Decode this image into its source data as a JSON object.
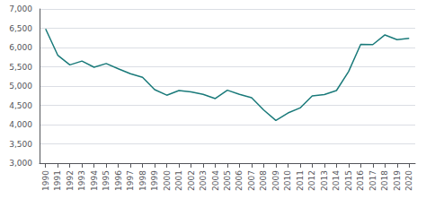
{
  "chart_data": {
    "type": "line",
    "x": [
      1990,
      1991,
      1992,
      1993,
      1994,
      1995,
      1996,
      1997,
      1998,
      1999,
      2000,
      2001,
      2002,
      2003,
      2004,
      2005,
      2006,
      2007,
      2008,
      2009,
      2010,
      2011,
      2012,
      2013,
      2014,
      2015,
      2016,
      2017,
      2018,
      2019,
      2020
    ],
    "values": [
      6482,
      5801,
      5549,
      5649,
      5489,
      5584,
      5449,
      5321,
      5228,
      4906,
      4763,
      4882,
      4851,
      4784,
      4675,
      4892,
      4784,
      4699,
      4378,
      4109,
      4302,
      4432,
      4743,
      4779,
      4884,
      5376,
      6080,
      6075,
      6327,
      6205,
      6236
    ],
    "color": "#1a7a7a",
    "xlim": [
      1989.5,
      2020.5
    ],
    "xticks": [
      1990,
      1991,
      1992,
      1993,
      1994,
      1995,
      1996,
      1997,
      1998,
      1999,
      2000,
      2001,
      2002,
      2003,
      2004,
      2005,
      2006,
      2007,
      2008,
      2009,
      2010,
      2011,
      2012,
      2013,
      2014,
      2015,
      2016,
      2017,
      2018,
      2019,
      2020
    ],
    "ylim": [
      3000,
      7000
    ],
    "yticks": [
      {
        "value": 3000,
        "label": "3,000"
      },
      {
        "value": 3500,
        "label": "3,500"
      },
      {
        "value": 4000,
        "label": "4,000"
      },
      {
        "value": 4500,
        "label": "4,500"
      },
      {
        "value": 5000,
        "label": "5,000"
      },
      {
        "value": 5500,
        "label": "5,500"
      },
      {
        "value": 6000,
        "label": "6,000"
      },
      {
        "value": 6500,
        "label": "6,500"
      },
      {
        "value": 7000,
        "label": "7,000"
      }
    ],
    "grid": true
  }
}
